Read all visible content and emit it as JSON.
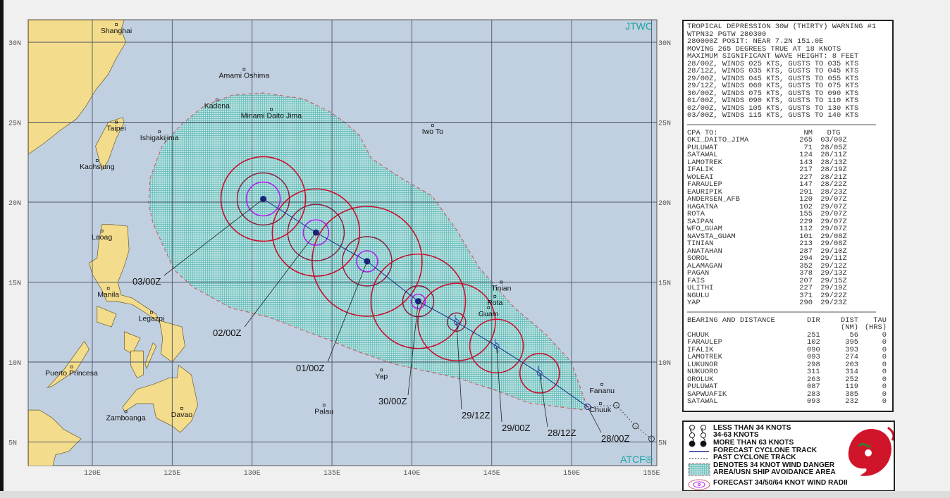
{
  "colors": {
    "ocean": "#c1d0e0",
    "land": "#f3dc8c",
    "danger_fill": "#bde3e2",
    "danger_grid": "#47b0ad",
    "danger_edge": "#d06070",
    "radii_34": "#c8102e",
    "radii_50": "#8b1a3a",
    "radii_64": "#b020f0",
    "track": "#1a2a8a",
    "center": "#1a237e",
    "brand": "#1aa3a3"
  },
  "map": {
    "brand_top": "JTWC",
    "brand_bottom": "ATCF®",
    "lat_ticks": [
      "30N",
      "25N",
      "20N",
      "15N",
      "10N",
      "5N"
    ],
    "lon_ticks": [
      "120E",
      "125E",
      "130E",
      "135E",
      "140E",
      "145E",
      "150E",
      "155E"
    ],
    "places": [
      {
        "name": "Shanghai",
        "lat": 31.1,
        "lon": 121.5
      },
      {
        "name": "Amami Oshima",
        "lat": 28.3,
        "lon": 129.5
      },
      {
        "name": "Kadena",
        "lat": 26.4,
        "lon": 127.8
      },
      {
        "name": "Minami Daito Jima",
        "lat": 25.8,
        "lon": 131.2
      },
      {
        "name": "Iwo To",
        "lat": 24.8,
        "lon": 141.3
      },
      {
        "name": "Taipei",
        "lat": 25.0,
        "lon": 121.5
      },
      {
        "name": "Ishigakijima",
        "lat": 24.4,
        "lon": 124.2
      },
      {
        "name": "Kaohsiung",
        "lat": 22.6,
        "lon": 120.3
      },
      {
        "name": "Laoag",
        "lat": 18.2,
        "lon": 120.6
      },
      {
        "name": "Manila",
        "lat": 14.6,
        "lon": 121.0
      },
      {
        "name": "Legazpi",
        "lat": 13.1,
        "lon": 123.7
      },
      {
        "name": "Puerto Princesa",
        "lat": 9.7,
        "lon": 118.7
      },
      {
        "name": "Zamboanga",
        "lat": 6.9,
        "lon": 122.1
      },
      {
        "name": "Davao",
        "lat": 7.1,
        "lon": 125.6
      },
      {
        "name": "Palau",
        "lat": 7.3,
        "lon": 134.5
      },
      {
        "name": "Yap",
        "lat": 9.5,
        "lon": 138.1
      },
      {
        "name": "Guam",
        "lat": 13.4,
        "lon": 144.8
      },
      {
        "name": "Rota",
        "lat": 14.1,
        "lon": 145.2
      },
      {
        "name": "Tinian",
        "lat": 15.0,
        "lon": 145.6
      },
      {
        "name": "Fananu",
        "lat": 8.6,
        "lon": 151.9
      },
      {
        "name": "Chuuk",
        "lat": 7.4,
        "lon": 151.8
      }
    ],
    "forecast_track": [
      {
        "tau": "28/00Z",
        "lat": 7.2,
        "lon": 151.0,
        "winds_kt": 25
      },
      {
        "tau": "28/12Z",
        "lat": 9.3,
        "lon": 148.0,
        "winds_kt": 35
      },
      {
        "tau": "29/00Z",
        "lat": 11.0,
        "lon": 145.3,
        "winds_kt": 45
      },
      {
        "tau": "29/12Z",
        "lat": 12.5,
        "lon": 142.8,
        "winds_kt": 60
      },
      {
        "tau": "30/00Z",
        "lat": 13.8,
        "lon": 140.4,
        "winds_kt": 75
      },
      {
        "tau": "01/00Z",
        "lat": 16.3,
        "lon": 137.2,
        "winds_kt": 90
      },
      {
        "tau": "02/00Z",
        "lat": 18.1,
        "lon": 134.0,
        "winds_kt": 105
      },
      {
        "tau": "03/00Z",
        "lat": 20.2,
        "lon": 130.7,
        "winds_kt": 115
      }
    ],
    "past_track": [
      {
        "lat": 7.2,
        "lon": 151.0
      },
      {
        "lat": 7.3,
        "lon": 152.8
      },
      {
        "lat": 6.0,
        "lon": 154.0
      },
      {
        "lat": 5.2,
        "lon": 155.0
      }
    ]
  },
  "warning": {
    "lines": [
      "TROPICAL DEPRESSION 30W (THIRTY) WARNING #1",
      "WTPN32 PGTW 280300",
      "280000Z POSIT: NEAR 7.2N 151.0E",
      "MOVING 265 DEGREES TRUE AT 18 KNOTS",
      "MAXIMUM SIGNIFICANT WAVE HEIGHT: 8 FEET",
      "28/00Z, WINDS 025 KTS, GUSTS TO 035 KTS",
      "28/12Z, WINDS 035 KTS, GUSTS TO 045 KTS",
      "29/00Z, WINDS 045 KTS, GUSTS TO 055 KTS",
      "29/12Z, WINDS 060 KTS, GUSTS TO 075 KTS",
      "30/00Z, WINDS 075 KTS, GUSTS TO 090 KTS",
      "01/00Z, WINDS 090 KTS, GUSTS TO 110 KTS",
      "02/00Z, WINDS 105 KTS, GUSTS TO 130 KTS",
      "03/00Z, WINDS 115 KTS, GUSTS TO 140 KTS"
    ]
  },
  "cpa": {
    "headers": [
      "CPA TO:",
      "NM",
      "DTG"
    ],
    "rows": [
      [
        "OKI_DAITO_JIMA",
        "265",
        "03/00Z"
      ],
      [
        "PULUWAT",
        "71",
        "28/05Z"
      ],
      [
        "SATAWAL",
        "124",
        "28/11Z"
      ],
      [
        "LAMOTREK",
        "143",
        "28/13Z"
      ],
      [
        "IFALIK",
        "217",
        "28/19Z"
      ],
      [
        "WOLEAI",
        "227",
        "28/21Z"
      ],
      [
        "FARAULEP",
        "147",
        "28/22Z"
      ],
      [
        "EAURIPIK",
        "291",
        "28/23Z"
      ],
      [
        "ANDERSEN_AFB",
        "120",
        "29/07Z"
      ],
      [
        "HAGATNA",
        "102",
        "29/07Z"
      ],
      [
        "ROTA",
        "155",
        "29/07Z"
      ],
      [
        "SAIPAN",
        "229",
        "29/07Z"
      ],
      [
        "WFO_GUAM",
        "112",
        "29/07Z"
      ],
      [
        "NAVSTA_GUAM",
        "101",
        "29/08Z"
      ],
      [
        "TINIAN",
        "213",
        "29/08Z"
      ],
      [
        "ANATAHAN",
        "287",
        "29/10Z"
      ],
      [
        "SOROL",
        "294",
        "29/11Z"
      ],
      [
        "ALAMAGAN",
        "352",
        "29/12Z"
      ],
      [
        "PAGAN",
        "378",
        "29/13Z"
      ],
      [
        "FAIS",
        "207",
        "29/15Z"
      ],
      [
        "ULITHI",
        "227",
        "29/19Z"
      ],
      [
        "NGULU",
        "371",
        "29/22Z"
      ],
      [
        "YAP",
        "290",
        "29/23Z"
      ]
    ]
  },
  "bearing": {
    "headers": [
      "BEARING AND DISTANCE",
      "DIR",
      "DIST",
      "TAU"
    ],
    "subheaders": [
      "(NM)",
      "(HRS)"
    ],
    "rows": [
      [
        "CHUUK",
        "251",
        "56",
        "0"
      ],
      [
        "FARAULEP",
        "102",
        "395",
        "0"
      ],
      [
        "IFALIK",
        "090",
        "393",
        "0"
      ],
      [
        "LAMOTREK",
        "093",
        "274",
        "0"
      ],
      [
        "LUKUNOR",
        "298",
        "203",
        "0"
      ],
      [
        "NUKUORO",
        "311",
        "314",
        "0"
      ],
      [
        "OROLUK",
        "263",
        "252",
        "0"
      ],
      [
        "PULUWAT",
        "087",
        "119",
        "0"
      ],
      [
        "SAPWUAFIK",
        "283",
        "385",
        "0"
      ],
      [
        "SATAWAL",
        "093",
        "232",
        "0"
      ]
    ]
  },
  "legend": {
    "items": [
      "LESS THAN 34 KNOTS",
      "34-63 KNOTS",
      "MORE THAN 63 KNOTS",
      "FORECAST CYCLONE TRACK",
      "PAST CYCLONE TRACK",
      "DENOTES 34 KNOT WIND DANGER",
      "AREA/USN SHIP AVOIDANCE AREA",
      "FORECAST 34/50/64 KNOT WIND RADII"
    ],
    "logo_text": "JOINT TYPHOON WARNING CENTER PEARL HARBOR HAWAII"
  }
}
